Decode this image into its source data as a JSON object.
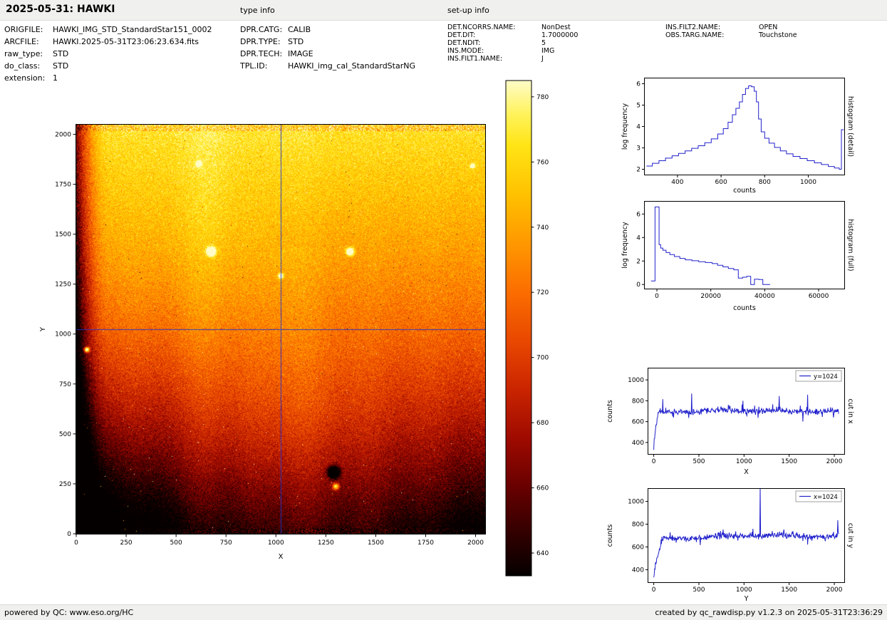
{
  "header": {
    "title": "2025-05-31: HAWKI",
    "type_info_label": "type info",
    "setup_info_label": "set-up info"
  },
  "metadata": {
    "file_info": [
      {
        "label": "ORIGFILE:",
        "value": "HAWKI_IMG_STD_StandardStar151_0002"
      },
      {
        "label": "ARCFILE:",
        "value": "HAWKI.2025-05-31T23:06:23.634.fits"
      },
      {
        "label": "raw_type:",
        "value": "STD"
      },
      {
        "label": "do_class:",
        "value": "STD"
      },
      {
        "label": "extension:",
        "value": "1"
      }
    ],
    "type_info": [
      {
        "label": "DPR.CATG:",
        "value": "CALIB"
      },
      {
        "label": "DPR.TYPE:",
        "value": "STD"
      },
      {
        "label": "DPR.TECH:",
        "value": "IMAGE"
      },
      {
        "label": "TPL.ID:",
        "value": "HAWKI_img_cal_StandardStarNG"
      }
    ],
    "setup_info_a": [
      {
        "label": "DET.NCORRS.NAME:",
        "value": "NonDest"
      },
      {
        "label": "DET.DIT:",
        "value": "1.7000000"
      },
      {
        "label": "DET.NDIT:",
        "value": "5"
      },
      {
        "label": "INS.MODE:",
        "value": "IMG"
      },
      {
        "label": "INS.FILT1.NAME:",
        "value": "J"
      }
    ],
    "setup_info_b": [
      {
        "label": "INS.FILT2.NAME:",
        "value": "OPEN"
      },
      {
        "label": "OBS.TARG.NAME:",
        "value": "Touchstone"
      }
    ]
  },
  "footer": {
    "left": "powered by QC: www.eso.org/HC",
    "right": "created by qc_rawdisp.py v1.2.3 on 2025-05-31T23:36:29"
  },
  "colors": {
    "line": "#2222cc",
    "crosshair": "#2233cc",
    "chrome_bg": "#f0f0ee",
    "frame": "#000000"
  },
  "chart_data": [
    {
      "id": "detector-image",
      "type": "heatmap",
      "xlabel": "X",
      "ylabel": "Y",
      "xlim": [
        0,
        2048
      ],
      "ylim": [
        0,
        2048
      ],
      "xticks": [
        0,
        250,
        500,
        750,
        1000,
        1250,
        1500,
        1750,
        2000
      ],
      "yticks": [
        0,
        250,
        500,
        750,
        1000,
        1250,
        1500,
        1750,
        2000
      ],
      "crosshair": {
        "x": 1024,
        "y": 1024
      },
      "value_range": [
        633,
        785
      ],
      "colorbar_ticks": [
        640,
        660,
        680,
        700,
        720,
        740,
        760,
        780
      ],
      "colormap": "hot",
      "colormap_stops": [
        {
          "v": 633,
          "color": "#050000"
        },
        {
          "v": 645,
          "color": "#2e0000"
        },
        {
          "v": 660,
          "color": "#670000"
        },
        {
          "v": 675,
          "color": "#9e0a00"
        },
        {
          "v": 690,
          "color": "#c92400"
        },
        {
          "v": 705,
          "color": "#e84800"
        },
        {
          "v": 720,
          "color": "#fb6d00"
        },
        {
          "v": 735,
          "color": "#ff9800"
        },
        {
          "v": 750,
          "color": "#ffc100"
        },
        {
          "v": 765,
          "color": "#ffe414"
        },
        {
          "v": 775,
          "color": "#fff35e"
        },
        {
          "v": 785,
          "color": "#fffcc8"
        }
      ],
      "gradient": {
        "top": 766,
        "middle": 720,
        "bottom": 660,
        "left_edge_drop": 90,
        "left_edge_frac": 0.08
      },
      "noise_sigma": 9,
      "features": [
        {
          "u": 0.33,
          "v": 0.31,
          "r": 4,
          "amp": 140
        },
        {
          "u": 0.67,
          "v": 0.31,
          "r": 3.5,
          "amp": 120
        },
        {
          "u": 0.5,
          "v": 0.37,
          "r": 2.5,
          "amp": 90
        },
        {
          "u": 0.025,
          "v": 0.55,
          "r": 2.5,
          "amp": 150
        },
        {
          "u": 0.63,
          "v": 0.85,
          "r": 5,
          "amp": -150
        },
        {
          "u": 0.635,
          "v": 0.885,
          "r": 3,
          "amp": 110
        },
        {
          "u": 0.3,
          "v": 0.095,
          "r": 2.5,
          "amp": 100
        },
        {
          "u": 0.97,
          "v": 0.1,
          "r": 2,
          "amp": 90
        },
        {
          "u": 0.53,
          "v": 0.7,
          "r": 80,
          "amp": 10
        },
        {
          "u": 0.33,
          "v": 0.3,
          "r": 100,
          "amp": 8
        }
      ]
    },
    {
      "id": "histogram-detail",
      "type": "line",
      "step": true,
      "right_label": "histogram (detail)",
      "xlabel": "counts",
      "ylabel": "log frequency",
      "xlim": [
        250,
        1165
      ],
      "ylim": [
        1.75,
        6.25
      ],
      "xticks": [
        400,
        600,
        800,
        1000
      ],
      "yticks": [
        2,
        3,
        4,
        5,
        6
      ],
      "x": [
        258,
        285,
        315,
        345,
        375,
        405,
        435,
        465,
        495,
        525,
        555,
        585,
        610,
        632,
        652,
        668,
        684,
        698,
        712,
        726,
        740,
        752,
        762,
        772,
        784,
        800,
        820,
        845,
        872,
        900,
        930,
        962,
        995,
        1028,
        1060,
        1092,
        1120,
        1142,
        1152,
        1163
      ],
      "y": [
        2.15,
        2.28,
        2.4,
        2.52,
        2.63,
        2.74,
        2.86,
        2.98,
        3.1,
        3.24,
        3.42,
        3.65,
        3.9,
        4.2,
        4.55,
        4.85,
        5.15,
        5.5,
        5.78,
        5.9,
        5.86,
        5.65,
        5.15,
        4.35,
        3.75,
        3.45,
        3.22,
        3.02,
        2.86,
        2.72,
        2.6,
        2.5,
        2.4,
        2.3,
        2.22,
        2.13,
        2.06,
        2.0,
        3.85,
        3.85
      ]
    },
    {
      "id": "histogram-full",
      "type": "line",
      "step": true,
      "right_label": "histogram (full)",
      "xlabel": "counts",
      "ylabel": "log frequency",
      "xlim": [
        -4500,
        69500
      ],
      "ylim": [
        -0.35,
        7.05
      ],
      "xticks": [
        0,
        20000,
        40000,
        60000
      ],
      "yticks": [
        0,
        2,
        4,
        6
      ],
      "x": [
        -2200,
        -700,
        800,
        1400,
        2200,
        3400,
        4800,
        6500,
        8500,
        10500,
        13000,
        15500,
        18000,
        20500,
        22500,
        24500,
        26500,
        28500,
        30200,
        31800,
        33300,
        34800,
        36200,
        37800,
        39300,
        40800,
        42000
      ],
      "y": [
        0.3,
        6.6,
        3.4,
        3.1,
        2.92,
        2.72,
        2.55,
        2.38,
        2.22,
        2.1,
        2.02,
        1.94,
        1.87,
        1.78,
        1.64,
        1.5,
        1.36,
        1.25,
        0.55,
        0.62,
        0.7,
        0.0,
        0.45,
        0.42,
        0.0,
        0.0,
        0.0
      ]
    },
    {
      "id": "cut-in-x",
      "type": "line",
      "gen": true,
      "seed": 11,
      "right_label": "cut in x",
      "xlabel": "X",
      "ylabel": "counts",
      "legend": "y=1024",
      "xlim": [
        -60,
        2110
      ],
      "ylim": [
        290,
        1110
      ],
      "xticks": [
        0,
        500,
        1000,
        1500,
        2000
      ],
      "yticks": [
        400,
        600,
        800,
        1000
      ],
      "x_max": 2048,
      "n_points": 430,
      "baseline": 700,
      "slope": 10,
      "noise_sigma": 14,
      "wiggle": 12,
      "ramp": {
        "start_value": 345,
        "width": 55
      },
      "spikes": [
        {
          "x": 100,
          "y": 815
        },
        {
          "x": 420,
          "y": 870
        },
        {
          "x": 990,
          "y": 800
        },
        {
          "x": 1390,
          "y": 845
        },
        {
          "x": 1705,
          "y": 858
        },
        {
          "x": 1650,
          "y": 600
        },
        {
          "x": 1990,
          "y": 640
        }
      ]
    },
    {
      "id": "cut-in-y",
      "type": "line",
      "gen": true,
      "seed": 23,
      "right_label": "cut in y",
      "xlabel": "Y",
      "ylabel": "counts",
      "legend": "x=1024",
      "xlim": [
        -60,
        2110
      ],
      "ylim": [
        290,
        1110
      ],
      "xticks": [
        0,
        500,
        1000,
        1500,
        2000
      ],
      "yticks": [
        400,
        600,
        800,
        1000
      ],
      "x_max": 2048,
      "n_points": 430,
      "baseline": 690,
      "slope": 25,
      "noise_sigma": 14,
      "wiggle": 14,
      "ramp": {
        "start_value": 305,
        "width": 110
      },
      "spikes": [
        {
          "x": 1178,
          "y": 1135
        },
        {
          "x": 2040,
          "y": 835
        }
      ]
    }
  ]
}
